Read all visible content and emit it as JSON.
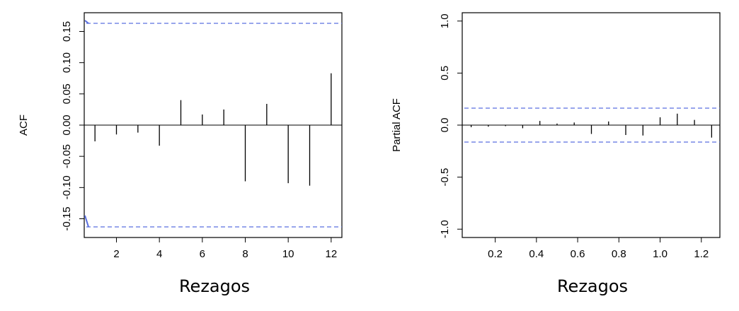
{
  "chart_data": [
    {
      "type": "bar",
      "name": "acf",
      "ylabel": "ACF",
      "xlabel": "Rezagos",
      "xlim": [
        0.5,
        12.5
      ],
      "ylim": [
        -0.18,
        0.18
      ],
      "x_ticks": [
        "2",
        "4",
        "6",
        "8",
        "10",
        "12"
      ],
      "x_tick_values": [
        2,
        4,
        6,
        8,
        10,
        12
      ],
      "y_ticks": [
        "-0.15",
        "-0.10",
        "-0.05",
        "0.00",
        "0.05",
        "0.10",
        "0.15"
      ],
      "y_tick_values": [
        -0.15,
        -0.1,
        -0.05,
        0.0,
        0.05,
        0.1,
        0.15
      ],
      "lags": [
        1,
        2,
        3,
        4,
        5,
        6,
        7,
        8,
        9,
        10,
        11,
        12
      ],
      "values": [
        -0.026,
        -0.015,
        -0.012,
        -0.033,
        0.04,
        0.017,
        0.025,
        -0.09,
        0.034,
        -0.093,
        -0.097,
        0.083
      ],
      "confidence_bound": 0.163,
      "grid": false,
      "series_color": "#000000",
      "ci_color": "#5a6fe0"
    },
    {
      "type": "bar",
      "name": "pacf",
      "ylabel": "Partial ACF",
      "xlabel": "Rezagos",
      "xlim": [
        0.04,
        1.29
      ],
      "ylim": [
        -1.08,
        1.08
      ],
      "x_ticks": [
        "0.2",
        "0.4",
        "0.6",
        "0.8",
        "1.0",
        "1.2"
      ],
      "x_tick_values": [
        0.2,
        0.4,
        0.6,
        0.8,
        1.0,
        1.2
      ],
      "y_ticks": [
        "-1.0",
        "-0.5",
        "0.0",
        "0.5",
        "1.0"
      ],
      "y_tick_values": [
        -1.0,
        -0.5,
        0.0,
        0.5,
        1.0
      ],
      "lags": [
        0.0833,
        0.1667,
        0.25,
        0.3333,
        0.4167,
        0.5,
        0.5833,
        0.6667,
        0.75,
        0.8333,
        0.9167,
        1.0,
        1.0833,
        1.1667,
        1.25
      ],
      "values": [
        -0.02,
        -0.015,
        -0.01,
        -0.03,
        0.04,
        0.015,
        0.025,
        -0.085,
        0.035,
        -0.095,
        -0.1,
        0.075,
        0.11,
        0.05,
        -0.12
      ],
      "confidence_bound": 0.163,
      "grid": false,
      "series_color": "#000000",
      "ci_color": "#5a6fe0"
    }
  ]
}
